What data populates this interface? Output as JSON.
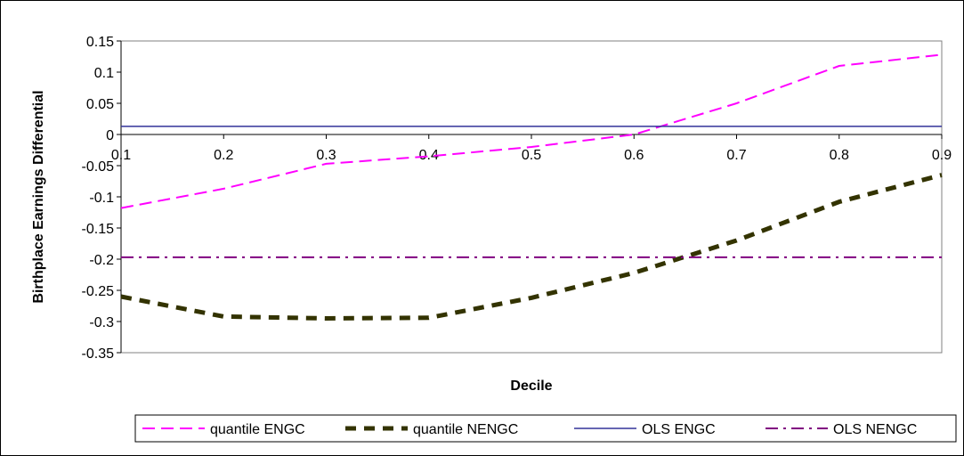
{
  "chart_data": {
    "type": "line",
    "title": "",
    "xlabel": "Decile",
    "ylabel": "Birthplace Earnings Differential",
    "x": [
      0.1,
      0.2,
      0.3,
      0.4,
      0.5,
      0.6,
      0.7,
      0.8,
      0.9
    ],
    "x_tick_labels": [
      "0.1",
      "0.2",
      "0.3",
      "0.4",
      "0.5",
      "0.6",
      "0.7",
      "0.8",
      "0.9"
    ],
    "y_tick_labels": [
      "0.15",
      "0.1",
      "0.05",
      "0",
      "-0.05",
      "-0.1",
      "-0.15",
      "-0.2",
      "-0.25",
      "-0.3",
      "-0.35"
    ],
    "y_ticks": [
      0.15,
      0.1,
      0.05,
      0,
      -0.05,
      -0.1,
      -0.15,
      -0.2,
      -0.25,
      -0.3,
      -0.35
    ],
    "xlim": [
      0.1,
      0.9
    ],
    "ylim": [
      -0.35,
      0.15
    ],
    "grid": false,
    "legend_position": "bottom",
    "series": [
      {
        "name": "quantile ENGC",
        "values": [
          -0.118,
          -0.087,
          -0.047,
          -0.035,
          -0.02,
          0.0,
          0.05,
          0.11,
          0.128
        ],
        "color": "#ff00ff",
        "style": "dashed"
      },
      {
        "name": "quantile NENGC",
        "values": [
          -0.26,
          -0.292,
          -0.295,
          -0.294,
          -0.262,
          -0.222,
          -0.17,
          -0.108,
          -0.065
        ],
        "color": "#333300",
        "style": "heavy-dashed"
      },
      {
        "name": "OLS ENGC",
        "values": [
          0.013,
          0.013,
          0.013,
          0.013,
          0.013,
          0.013,
          0.013,
          0.013,
          0.013
        ],
        "color": "#333399",
        "style": "solid"
      },
      {
        "name": "OLS NENGC",
        "values": [
          -0.197,
          -0.197,
          -0.197,
          -0.197,
          -0.197,
          -0.197,
          -0.197,
          -0.197,
          -0.197
        ],
        "color": "#800080",
        "style": "dash-dot"
      }
    ]
  }
}
